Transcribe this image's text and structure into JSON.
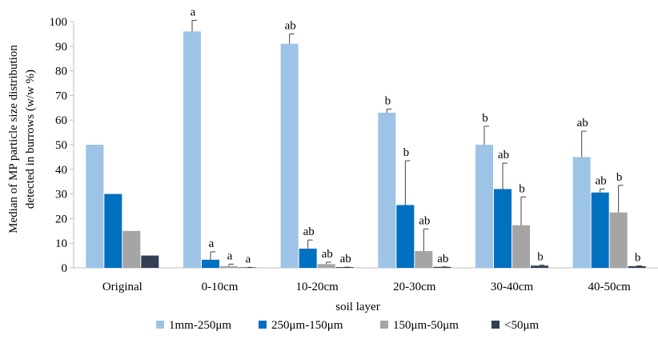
{
  "chart_data": {
    "type": "bar",
    "title": "",
    "xlabel": "soil layer",
    "ylabel": "Median of MP particle size distribution detected in burrows (w/w %)",
    "ylabel_lines": [
      "Median of MP particle size distribution",
      "detected in burrows (w/w %)"
    ],
    "ylim": [
      0,
      100
    ],
    "yticks": [
      0,
      10,
      20,
      30,
      40,
      50,
      60,
      70,
      80,
      90,
      100
    ],
    "grid": false,
    "legend_position": "bottom",
    "categories": [
      "Original",
      "0-10cm",
      "10-20cm",
      "20-30cm",
      "30-40cm",
      "40-50cm"
    ],
    "series": [
      {
        "name": "1mm-250μm",
        "color": "#9DC3E6",
        "values": [
          50,
          96,
          91,
          63,
          50,
          45
        ],
        "errors": [
          null,
          4.5,
          4,
          1.5,
          7.5,
          10.5
        ],
        "labels": [
          "",
          "a",
          "ab",
          "b",
          "b",
          "ab"
        ]
      },
      {
        "name": "250μm-150μm",
        "color": "#0070C0",
        "values": [
          30,
          3.3,
          7.8,
          25.5,
          32,
          30.6
        ],
        "errors": [
          null,
          3.2,
          3.5,
          18,
          10.5,
          1.4
        ],
        "labels": [
          "",
          "a",
          "ab",
          "b",
          "ab",
          "ab"
        ]
      },
      {
        "name": "150μm-50μm",
        "color": "#A5A5A5",
        "values": [
          15,
          0.7,
          1.5,
          6.8,
          17.3,
          22.5
        ],
        "errors": [
          null,
          0.8,
          0.8,
          9,
          11.5,
          11
        ],
        "labels": [
          "",
          "a",
          "ab",
          "ab",
          "b",
          "b"
        ]
      },
      {
        "name": "<50μm",
        "color": "#323F55",
        "values": [
          5,
          0.2,
          0.3,
          0.4,
          0.9,
          0.7
        ],
        "errors": [
          null,
          0,
          0,
          0,
          0.2,
          0.1
        ],
        "labels": [
          "",
          "a",
          "ab",
          "ab",
          "b",
          "b"
        ]
      }
    ]
  }
}
